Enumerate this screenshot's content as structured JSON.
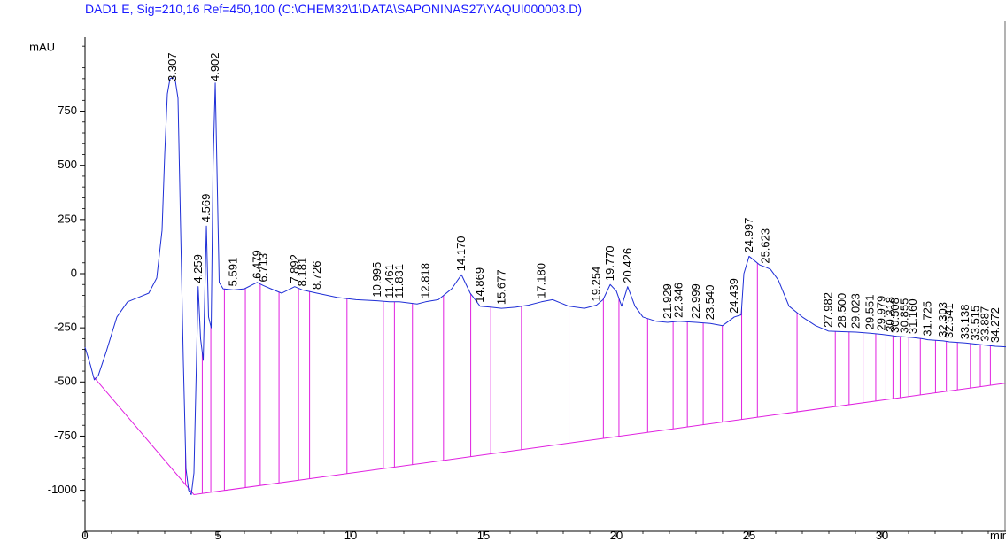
{
  "chart_data": {
    "type": "line",
    "title": "DAD1 E, Sig=210,16 Ref=450,100 (C:\\CHEM32\\1\\DATA\\SAPONINAS27\\YAQUI000003.D)",
    "ylabel": "mAU",
    "xlabel": "min",
    "xlim": [
      0,
      35
    ],
    "ylim": [
      -1080,
      1070
    ],
    "x_ticks": [
      0,
      5,
      10,
      15,
      20,
      25,
      30
    ],
    "y_ticks": [
      -1000,
      -750,
      -500,
      -250,
      0,
      250,
      500,
      750
    ],
    "grid": false,
    "colors": {
      "signal": "#1f2fd6",
      "baseline": "#e020e0",
      "title": "#1a1aff"
    },
    "baseline": {
      "points": [
        [
          0.35,
          -480
        ],
        [
          4.1,
          -1020
        ],
        [
          35,
          -500
        ]
      ]
    },
    "signal": {
      "x": [
        0,
        0.2,
        0.35,
        0.5,
        0.8,
        1.2,
        1.6,
        2.0,
        2.4,
        2.7,
        2.9,
        3.0,
        3.1,
        3.2,
        3.307,
        3.4,
        3.5,
        3.6,
        3.7,
        3.8,
        3.9,
        4.0,
        4.1,
        4.259,
        4.35,
        4.45,
        4.569,
        4.65,
        4.75,
        4.82,
        4.902,
        4.98,
        5.05,
        5.2,
        5.591,
        6.0,
        6.479,
        6.713,
        7.0,
        7.4,
        7.892,
        8.181,
        8.726,
        9.5,
        10.2,
        10.995,
        11.461,
        11.831,
        12.5,
        12.818,
        13.3,
        13.8,
        14.17,
        14.5,
        14.869,
        15.3,
        15.677,
        16.2,
        16.7,
        17.18,
        17.6,
        18.2,
        18.8,
        19.254,
        19.5,
        19.77,
        20.0,
        20.2,
        20.426,
        20.7,
        21.0,
        21.5,
        21.929,
        22.346,
        22.999,
        23.54,
        24.0,
        24.439,
        24.7,
        24.8,
        24.997,
        25.2,
        25.4,
        25.623,
        25.8,
        26.1,
        26.5,
        27.0,
        27.5,
        27.982,
        28.5,
        29.023,
        29.551,
        29.979,
        30.318,
        30.6,
        30.855,
        31.16,
        31.5,
        31.725,
        32.303,
        32.541,
        33.138,
        33.515,
        33.887,
        34.272,
        35
      ],
      "y": [
        -340,
        -420,
        -490,
        -470,
        -360,
        -200,
        -130,
        -110,
        -90,
        -20,
        200,
        550,
        830,
        900,
        905,
        890,
        810,
        200,
        -400,
        -900,
        -1000,
        -1020,
        -920,
        -60,
        -300,
        -400,
        220,
        -200,
        -250,
        500,
        880,
        400,
        -40,
        -70,
        -75,
        -70,
        -40,
        -55,
        -70,
        -90,
        -60,
        -75,
        -90,
        -110,
        -120,
        -125,
        -130,
        -130,
        -140,
        -130,
        -120,
        -70,
        -5,
        -90,
        -150,
        -155,
        -160,
        -155,
        -145,
        -130,
        -120,
        -150,
        -160,
        -145,
        -120,
        -50,
        -80,
        -150,
        -60,
        -150,
        -200,
        -220,
        -225,
        -220,
        -225,
        -230,
        -240,
        -200,
        -190,
        0,
        80,
        60,
        40,
        30,
        20,
        -30,
        -150,
        -200,
        -240,
        -265,
        -268,
        -270,
        -275,
        -280,
        -285,
        -290,
        -292,
        -295,
        -300,
        -305,
        -310,
        -315,
        -320,
        -325,
        -330,
        -335,
        -340
      ]
    },
    "peaks": [
      {
        "rt": "3.307",
        "x": 3.307,
        "y": 905
      },
      {
        "rt": "4.259",
        "x": 4.259,
        "y": -60
      },
      {
        "rt": "4.569",
        "x": 4.569,
        "y": 220
      },
      {
        "rt": "4.902",
        "x": 4.902,
        "y": 880
      },
      {
        "rt": "5.591",
        "x": 5.591,
        "y": -75
      },
      {
        "rt": "6.479",
        "x": 6.479,
        "y": -40
      },
      {
        "rt": "6.713",
        "x": 6.713,
        "y": -55
      },
      {
        "rt": "7.892",
        "x": 7.892,
        "y": -60
      },
      {
        "rt": "8.181",
        "x": 8.181,
        "y": -75
      },
      {
        "rt": "8.726",
        "x": 8.726,
        "y": -90
      },
      {
        "rt": "10.995",
        "x": 10.995,
        "y": -125
      },
      {
        "rt": "11.461",
        "x": 11.461,
        "y": -130
      },
      {
        "rt": "11.831",
        "x": 11.831,
        "y": -130
      },
      {
        "rt": "12.818",
        "x": 12.818,
        "y": -130
      },
      {
        "rt": "14.170",
        "x": 14.17,
        "y": -5
      },
      {
        "rt": "14.869",
        "x": 14.869,
        "y": -150
      },
      {
        "rt": "15.677",
        "x": 15.677,
        "y": -160
      },
      {
        "rt": "17.180",
        "x": 17.18,
        "y": -130
      },
      {
        "rt": "19.254",
        "x": 19.254,
        "y": -145
      },
      {
        "rt": "19.770",
        "x": 19.77,
        "y": -50
      },
      {
        "rt": "20.426",
        "x": 20.426,
        "y": -60
      },
      {
        "rt": "21.929",
        "x": 21.929,
        "y": -225
      },
      {
        "rt": "22.346",
        "x": 22.346,
        "y": -220
      },
      {
        "rt": "22.999",
        "x": 22.999,
        "y": -225
      },
      {
        "rt": "23.540",
        "x": 23.54,
        "y": -230
      },
      {
        "rt": "24.439",
        "x": 24.439,
        "y": -200
      },
      {
        "rt": "24.997",
        "x": 24.997,
        "y": 80
      },
      {
        "rt": "25.623",
        "x": 25.623,
        "y": 30
      },
      {
        "rt": "27.982",
        "x": 27.982,
        "y": -265
      },
      {
        "rt": "28.500",
        "x": 28.5,
        "y": -268
      },
      {
        "rt": "29.023",
        "x": 29.023,
        "y": -270
      },
      {
        "rt": "29.551",
        "x": 29.551,
        "y": -275
      },
      {
        "rt": "29.979",
        "x": 29.979,
        "y": -280
      },
      {
        "rt": "30.318",
        "x": 30.318,
        "y": -285
      },
      {
        "rt": "30.508",
        "x": 30.508,
        "y": -290
      },
      {
        "rt": "30.855",
        "x": 30.855,
        "y": -292
      },
      {
        "rt": "31.160",
        "x": 31.16,
        "y": -295
      },
      {
        "rt": "31.725",
        "x": 31.725,
        "y": -305
      },
      {
        "rt": "32.303",
        "x": 32.303,
        "y": -310
      },
      {
        "rt": "32.541",
        "x": 32.541,
        "y": -315
      },
      {
        "rt": "33.138",
        "x": 33.138,
        "y": -320
      },
      {
        "rt": "33.515",
        "x": 33.515,
        "y": -325
      },
      {
        "rt": "33.887",
        "x": 33.887,
        "y": -330
      },
      {
        "rt": "34.272",
        "x": 34.272,
        "y": -335
      }
    ]
  }
}
